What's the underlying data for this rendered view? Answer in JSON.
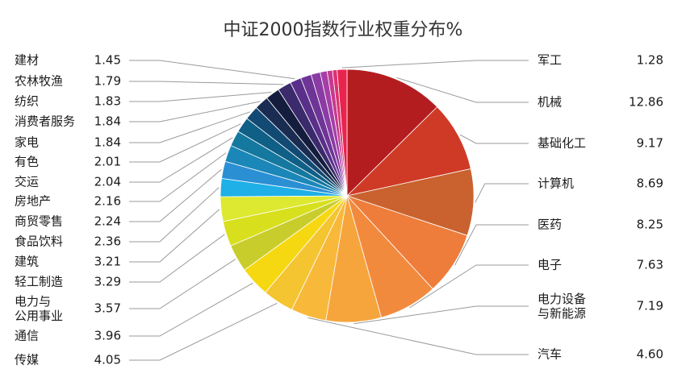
{
  "chart_data": {
    "type": "pie",
    "title": "中证2000指数行业权重分布%",
    "unit": "%",
    "slices": [
      {
        "label": "机械",
        "value": 12.86,
        "color": "#b31d1f"
      },
      {
        "label": "基础化工",
        "value": 9.17,
        "color": "#cf3a26"
      },
      {
        "label": "计算机",
        "value": 8.69,
        "color": "#c9622e"
      },
      {
        "label": "医药",
        "value": 8.25,
        "color": "#ee7d3b"
      },
      {
        "label": "电子",
        "value": 7.63,
        "color": "#f28a3e"
      },
      {
        "label": "电力设备\n与新能源",
        "value": 7.19,
        "color": "#f6a53d"
      },
      {
        "label": "汽车",
        "value": 4.6,
        "color": "#f8b83a"
      },
      {
        "label": "传媒",
        "value": 4.05,
        "color": "#f4c431"
      },
      {
        "label": "通信",
        "value": 3.96,
        "color": "#f6d812"
      },
      {
        "label": "电力与\n公用事业",
        "value": 3.57,
        "color": "#c9cd2c"
      },
      {
        "label": "轻工制造",
        "value": 3.29,
        "color": "#d8e01e"
      },
      {
        "label": "建筑",
        "value": 3.21,
        "color": "#dde830"
      },
      {
        "label": "食品饮料",
        "value": 2.36,
        "color": "#1eb0e6"
      },
      {
        "label": "商贸零售",
        "value": 2.24,
        "color": "#2b8fd4"
      },
      {
        "label": "房地产",
        "value": 2.16,
        "color": "#1b87b8"
      },
      {
        "label": "交运",
        "value": 2.04,
        "color": "#14789f"
      },
      {
        "label": "有色",
        "value": 2.01,
        "color": "#0f5f86"
      },
      {
        "label": "家电",
        "value": 1.84,
        "color": "#124a73"
      },
      {
        "label": "消费者服务",
        "value": 1.84,
        "color": "#1a2c52"
      },
      {
        "label": "纺织",
        "value": 1.83,
        "color": "#141d3d"
      },
      {
        "label": "农林牧渔",
        "value": 1.79,
        "color": "#3b2a6c"
      },
      {
        "label": "建材",
        "value": 1.45,
        "color": "#5a2f8a"
      },
      {
        "label": "",
        "value": 1.4,
        "color": "#6e3597"
      },
      {
        "label": "",
        "value": 1.2,
        "color": "#8a3ba4"
      },
      {
        "label": "",
        "value": 0.9,
        "color": "#a53ea6"
      },
      {
        "label": "",
        "value": 0.7,
        "color": "#c63a8f"
      },
      {
        "label": "",
        "value": 0.6,
        "color": "#de3272"
      },
      {
        "label": "军工",
        "value": 1.28,
        "color": "#e8244e"
      }
    ]
  }
}
